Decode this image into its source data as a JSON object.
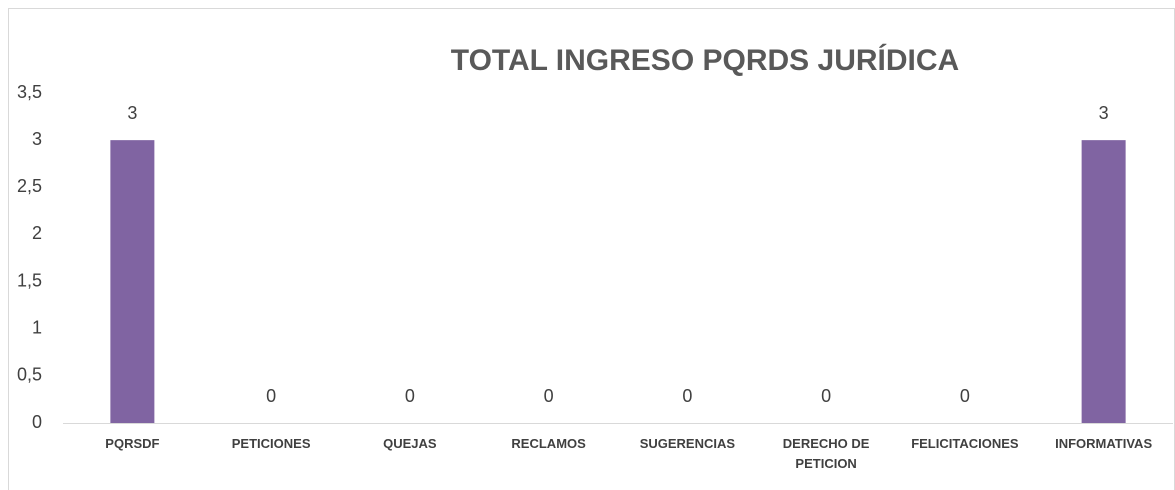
{
  "chart_data": {
    "type": "bar",
    "title": "TOTAL INGRESO PQRDS JURÍDICA",
    "categories": [
      "PQRSDF",
      "PETICIONES",
      "QUEJAS",
      "RECLAMOS",
      "SUGERENCIAS",
      "DERECHO DE PETICION",
      "FELICITACIONES",
      "INFORMATIVAS"
    ],
    "values": [
      3,
      0,
      0,
      0,
      0,
      0,
      0,
      3
    ],
    "color": "#8064a2",
    "ylim": [
      0,
      3.5
    ],
    "yticks": [
      0,
      {
        "value": 0.5,
        "label": "0,5"
      },
      1,
      {
        "value": 1.5,
        "label": "1,5"
      },
      2,
      {
        "value": 2.5,
        "label": "2,5"
      },
      3,
      {
        "value": 3.5,
        "label": "3,5"
      }
    ],
    "grid": false
  }
}
